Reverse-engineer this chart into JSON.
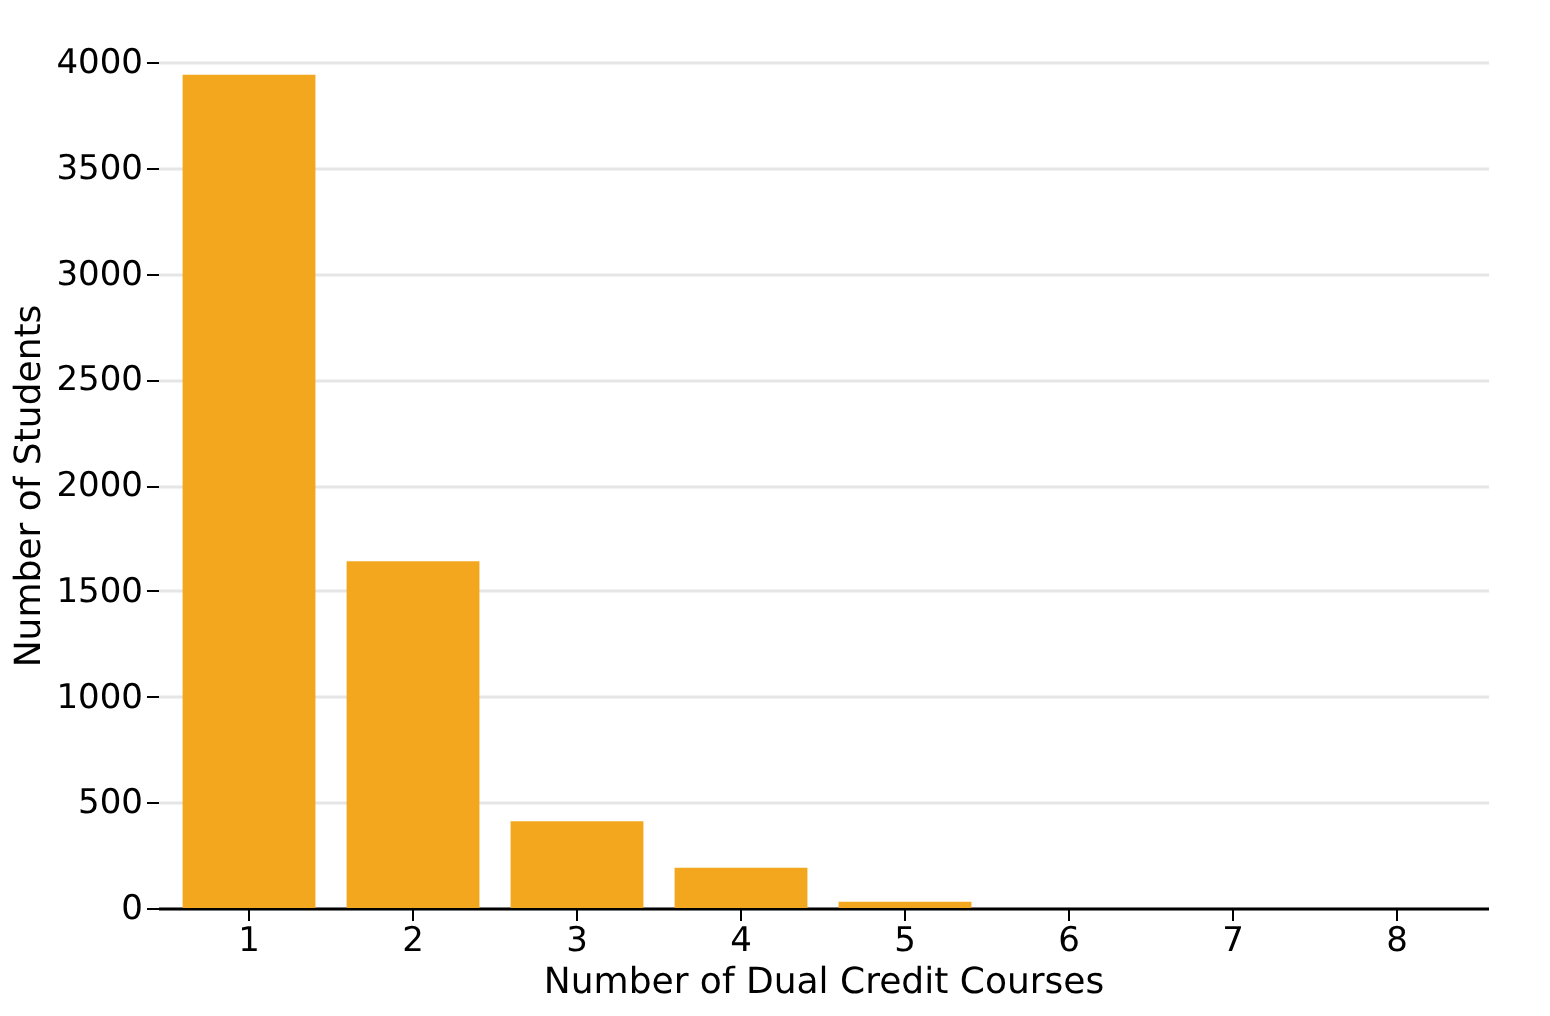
{
  "chart_data": {
    "type": "bar",
    "xlabel": "Number of Dual Credit Courses",
    "ylabel": "Number of Students",
    "categories": [
      "1",
      "2",
      "3",
      "4",
      "5",
      "6",
      "7",
      "8"
    ],
    "values": [
      3940,
      1640,
      410,
      190,
      30,
      0,
      0,
      0
    ],
    "color": "#f2a71f",
    "ylim": [
      0,
      4000
    ],
    "yticks": [
      0,
      500,
      1000,
      1500,
      2000,
      2500,
      3000,
      3500,
      4000
    ],
    "grid": "y"
  }
}
